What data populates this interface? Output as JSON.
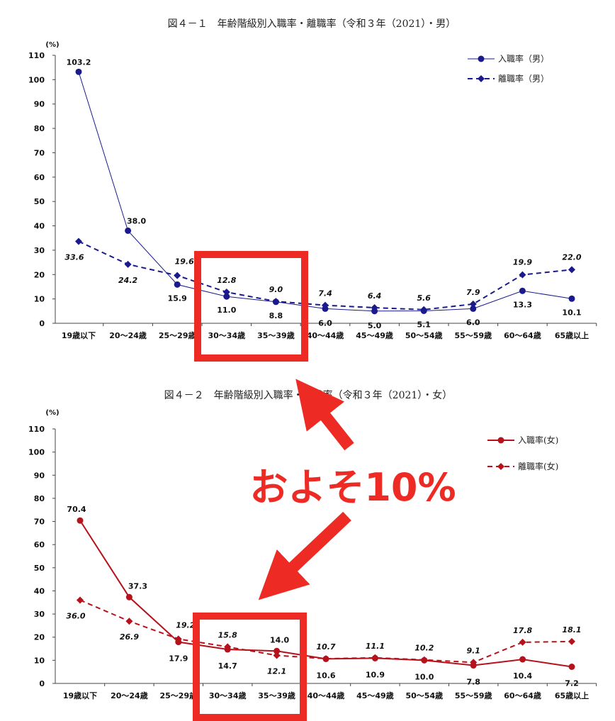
{
  "annotation": {
    "text": "およそ10%",
    "color": "#ee2a24"
  },
  "chart_data": [
    {
      "type": "line",
      "title": "図４－１　年齢階級別入職率・離職率（令和３年（2021）・男）",
      "unit": "(%)",
      "categories": [
        "19歳以下",
        "20～24歳",
        "25～29歳",
        "30～34歳",
        "35～39歳",
        "40～44歳",
        "45～49歳",
        "50～54歳",
        "55～59歳",
        "60～64歳",
        "65歳以上"
      ],
      "ylim": [
        0,
        110
      ],
      "yticks": [
        0,
        10,
        20,
        30,
        40,
        50,
        60,
        70,
        80,
        90,
        100,
        110
      ],
      "legend_position": "top-right",
      "series": [
        {
          "name": "入職率（男）",
          "color": "#1a1a8c",
          "style": "solid",
          "marker": "circle",
          "values": [
            103.2,
            38.0,
            15.9,
            11.0,
            8.8,
            6.0,
            5.0,
            5.1,
            6.0,
            13.3,
            10.1
          ],
          "labels": [
            "103.2",
            "38.0",
            "15.9",
            "11.0",
            "8.8",
            "6.0",
            "5.0",
            "5.1",
            "6.0",
            "13.3",
            "10.1"
          ]
        },
        {
          "name": "離職率（男）",
          "color": "#1a1a8c",
          "style": "dashed",
          "marker": "diamond",
          "values": [
            33.6,
            24.2,
            19.6,
            12.8,
            9.0,
            7.4,
            6.4,
            5.6,
            7.9,
            19.9,
            22.0
          ],
          "labels": [
            "33.6",
            "24.2",
            "19.6",
            "12.8",
            "9.0",
            "7.4",
            "6.4",
            "5.6",
            "7.9",
            "19.9",
            "22.0"
          ]
        }
      ]
    },
    {
      "type": "line",
      "title": "図４－２　年齢階級別入職率・離職率（令和３年（2021）・女）",
      "unit": "(%)",
      "categories": [
        "19歳以下",
        "20～24歳",
        "25～29歳",
        "30～34歳",
        "35～39歳",
        "40～44歳",
        "45～49歳",
        "50～54歳",
        "55～59歳",
        "60～64歳",
        "65歳以上"
      ],
      "ylim": [
        0,
        110
      ],
      "yticks": [
        0,
        10,
        20,
        30,
        40,
        50,
        60,
        70,
        80,
        90,
        100,
        110
      ],
      "legend_position": "top-right",
      "series": [
        {
          "name": "入職率(女)",
          "color": "#b5121b",
          "style": "solid",
          "marker": "circle",
          "values": [
            70.4,
            37.3,
            17.9,
            14.7,
            14.0,
            10.6,
            10.9,
            10.0,
            7.8,
            10.4,
            7.2
          ],
          "labels": [
            "70.4",
            "37.3",
            "17.9",
            "14.7",
            "14.0",
            "10.6",
            "10.9",
            "10.0",
            "7.8",
            "10.4",
            "7.2"
          ]
        },
        {
          "name": "離職率(女)",
          "color": "#b5121b",
          "style": "dashed",
          "marker": "diamond",
          "values": [
            36.0,
            26.9,
            19.2,
            15.8,
            12.1,
            10.7,
            11.1,
            10.2,
            9.1,
            17.8,
            18.1
          ],
          "labels": [
            "36.0",
            "26.9",
            "19.2",
            "15.8",
            "12.1",
            "10.7",
            "11.1",
            "10.2",
            "9.1",
            "17.8",
            "18.1"
          ]
        }
      ]
    }
  ]
}
